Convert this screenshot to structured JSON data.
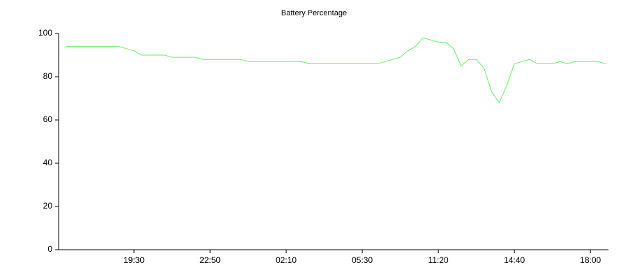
{
  "chart_data": {
    "type": "line",
    "title": "Battery Percentage",
    "categories": [
      null,
      null,
      null,
      null,
      null,
      null,
      null,
      null,
      null,
      "19:30",
      null,
      null,
      null,
      null,
      null,
      null,
      null,
      null,
      null,
      "22:50",
      null,
      null,
      null,
      null,
      null,
      null,
      null,
      null,
      null,
      "02:10",
      null,
      null,
      null,
      null,
      null,
      null,
      null,
      null,
      null,
      "05:30",
      null,
      null,
      null,
      null,
      null,
      null,
      null,
      null,
      null,
      "11:20",
      null,
      null,
      null,
      null,
      null,
      null,
      null,
      null,
      null,
      "14:40",
      null,
      null,
      null,
      null,
      null,
      null,
      null,
      null,
      null,
      "18:00",
      null,
      null
    ],
    "values": [
      94,
      94,
      94,
      94,
      94,
      94,
      94,
      94,
      93,
      92,
      90,
      90,
      90,
      90,
      89,
      89,
      89,
      89,
      88,
      88,
      88,
      88,
      88,
      88,
      87,
      87,
      87,
      87,
      87,
      87,
      87,
      87,
      86,
      86,
      86,
      86,
      86,
      86,
      86,
      86,
      86,
      86,
      87,
      88,
      89,
      92,
      94,
      98,
      97,
      96,
      96,
      93,
      85,
      88,
      88,
      84,
      73,
      68,
      76,
      86,
      87,
      88,
      86,
      86,
      86,
      87,
      86,
      87,
      87,
      87,
      87,
      86
    ],
    "color": "#66ee66",
    "ylim": [
      0,
      100
    ],
    "yticks": [
      0,
      20,
      40,
      60,
      80,
      100
    ]
  }
}
